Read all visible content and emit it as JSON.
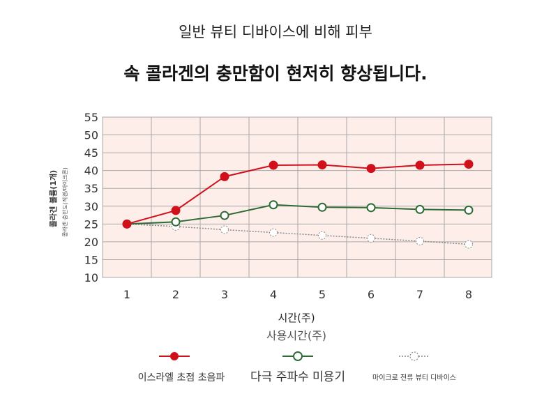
{
  "title_line1": "일반 뷰티 디바이스에 비해 피부",
  "title_line2": "속 콜라겐의 충만함이 현저히 향상됩니다.",
  "chart_data": {
    "type": "line",
    "title": "일반 뷰티 디바이스에 비해 피부 속 콜라겐의 충만함이 현저히 향상됩니다.",
    "xlabel": "시간(주)",
    "xlabel2": "사용시간(주)",
    "ylabel": "콜라겐 볼륨(1개)",
    "ylabel2": "콜라겐 충만도(직경/마이크론)",
    "x": [
      1,
      2,
      3,
      4,
      5,
      6,
      7,
      8
    ],
    "ylim": [
      10,
      55
    ],
    "yticks": [
      10,
      15,
      20,
      25,
      30,
      35,
      40,
      45,
      50,
      55
    ],
    "grid": true,
    "legend_position": "bottom",
    "series": [
      {
        "name": "이스라엘 초점 초음파",
        "color": "#d0101b",
        "marker": "filled",
        "values": [
          25,
          28.8,
          38.3,
          41.5,
          41.6,
          40.6,
          41.5,
          41.8
        ]
      },
      {
        "name": "다극 주파수 미용기",
        "color": "#2e6b35",
        "marker": "open",
        "values": [
          25,
          25.6,
          27.4,
          30.4,
          29.7,
          29.6,
          29.1,
          28.9
        ]
      },
      {
        "name": "마이크로 전류 뷰티 디바이스",
        "color": "#888888",
        "marker": "dotted",
        "values": [
          25,
          24.3,
          23.4,
          22.6,
          21.8,
          21.0,
          20.2,
          19.3
        ]
      }
    ]
  }
}
